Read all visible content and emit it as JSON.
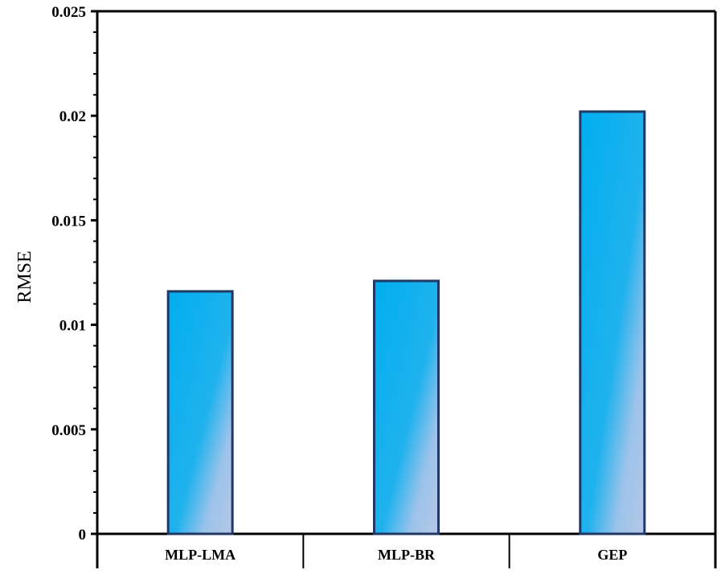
{
  "chart_data": {
    "type": "bar",
    "title": "",
    "xlabel": "",
    "ylabel": "RMSE",
    "categories": [
      "MLP-LMA",
      "MLP-BR",
      "GEP"
    ],
    "values": [
      0.0116,
      0.0121,
      0.0202
    ],
    "ylim": [
      0,
      0.025
    ],
    "yticks": [
      0,
      0.005,
      0.01,
      0.015,
      0.02,
      0.025
    ],
    "ytick_labels": [
      "0",
      "0.005",
      "0.01",
      "0.015",
      "0.02",
      "0.025"
    ],
    "grid": false,
    "legend": "none",
    "colors": {
      "bar_fill_top": "#00AEEF",
      "bar_fill_bottom": "#B4C7E7",
      "bar_edge": "#1F3864",
      "axis": "#000000"
    }
  }
}
